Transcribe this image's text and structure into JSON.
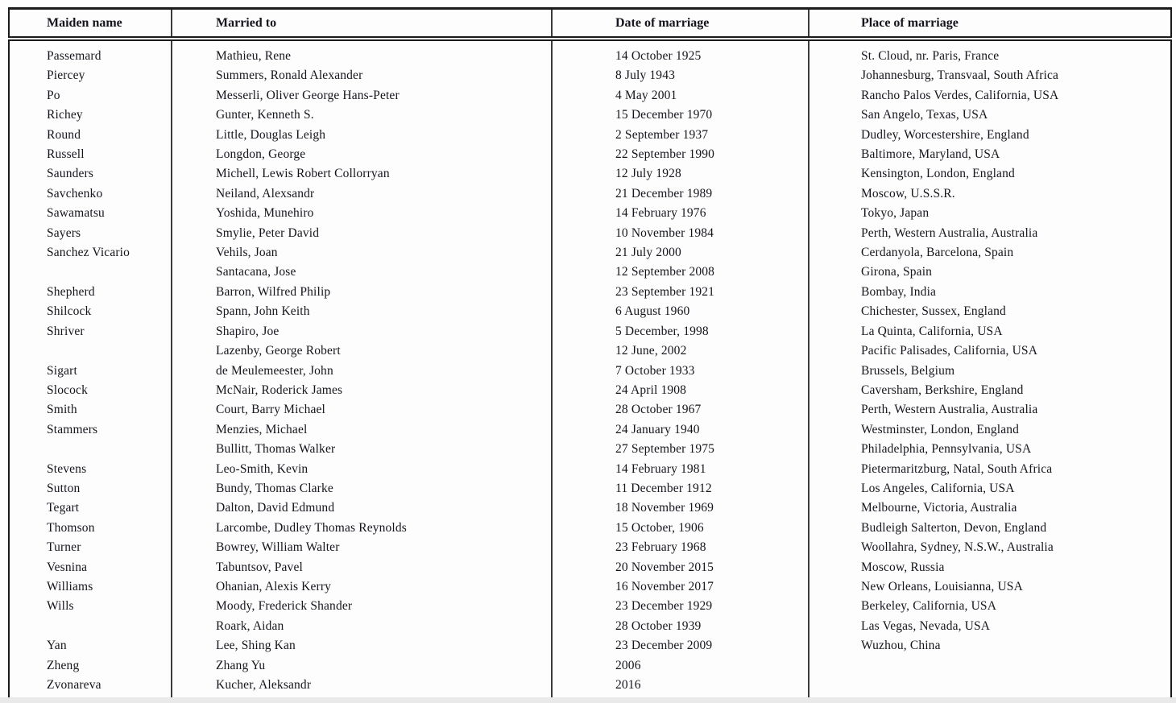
{
  "colors": {
    "text": "#15151d",
    "border": "#1b1b1b",
    "background": "#fdfdfd"
  },
  "table": {
    "columns": [
      "Maiden name",
      "Married to",
      "Date of marriage",
      "Place of marriage"
    ],
    "column_keys": [
      "maiden-name",
      "married-to",
      "date-of-marriage",
      "place-of-marriage"
    ],
    "rows": [
      [
        "Passemard",
        "Mathieu, Rene",
        "14 October 1925",
        "St. Cloud, nr. Paris, France"
      ],
      [
        "Piercey",
        "Summers, Ronald Alexander",
        "8 July 1943",
        "Johannesburg, Transvaal, South Africa"
      ],
      [
        "Po",
        "Messerli, Oliver George Hans-Peter",
        "4 May 2001",
        "Rancho Palos Verdes, California, USA"
      ],
      [
        "Richey",
        "Gunter, Kenneth S.",
        "15 December 1970",
        "San Angelo, Texas, USA"
      ],
      [
        "Round",
        "Little, Douglas Leigh",
        "2 September 1937",
        "Dudley, Worcestershire, England"
      ],
      [
        "Russell",
        "Longdon, George",
        "22 September 1990",
        "Baltimore, Maryland, USA"
      ],
      [
        "Saunders",
        "Michell, Lewis Robert Collorryan",
        "12 July 1928",
        "Kensington, London, England"
      ],
      [
        "Savchenko",
        "Neiland, Alexsandr",
        "21 December 1989",
        "Moscow, U.S.S.R."
      ],
      [
        "Sawamatsu",
        "Yoshida, Munehiro",
        "14 February 1976",
        "Tokyo, Japan"
      ],
      [
        "Sayers",
        "Smylie, Peter David",
        "10 November 1984",
        "Perth, Western Australia, Australia"
      ],
      [
        "Sanchez Vicario",
        "Vehils, Joan",
        "21 July 2000",
        "Cerdanyola, Barcelona, Spain"
      ],
      [
        "",
        "Santacana, Jose",
        "12 September 2008",
        "Girona, Spain"
      ],
      [
        "Shepherd",
        "Barron, Wilfred Philip",
        "23 September 1921",
        "Bombay, India"
      ],
      [
        "Shilcock",
        "Spann, John Keith",
        "6 August 1960",
        "Chichester, Sussex, England"
      ],
      [
        "Shriver",
        "Shapiro, Joe",
        "5 December, 1998",
        "La Quinta, California, USA"
      ],
      [
        "",
        "Lazenby, George Robert",
        "12 June, 2002",
        "Pacific Palisades, California, USA"
      ],
      [
        "Sigart",
        "de Meulemeester, John",
        "7 October 1933",
        "Brussels, Belgium"
      ],
      [
        "Slocock",
        "McNair, Roderick James",
        "24 April 1908",
        "Caversham, Berkshire, England"
      ],
      [
        "Smith",
        "Court, Barry Michael",
        "28 October 1967",
        "Perth, Western Australia, Australia"
      ],
      [
        "Stammers",
        "Menzies, Michael",
        "24 January 1940",
        "Westminster, London, England"
      ],
      [
        "",
        "Bullitt, Thomas Walker",
        "27 September 1975",
        "Philadelphia, Pennsylvania, USA"
      ],
      [
        "Stevens",
        "Leo-Smith, Kevin",
        "14 February 1981",
        "Pietermaritzburg, Natal, South Africa"
      ],
      [
        "Sutton",
        "Bundy, Thomas Clarke",
        "11 December 1912",
        "Los Angeles, California, USA"
      ],
      [
        "Tegart",
        "Dalton, David Edmund",
        "18 November 1969",
        "Melbourne, Victoria, Australia"
      ],
      [
        "Thomson",
        "Larcombe, Dudley Thomas Reynolds",
        "15 October, 1906",
        "Budleigh Salterton, Devon, England"
      ],
      [
        "Turner",
        "Bowrey, William Walter",
        "23 February 1968",
        "Woollahra, Sydney, N.S.W., Australia"
      ],
      [
        "Vesnina",
        "Tabuntsov, Pavel",
        "20 November 2015",
        "Moscow, Russia"
      ],
      [
        "Williams",
        "Ohanian, Alexis Kerry",
        "16 November 2017",
        "New Orleans, Louisianna, USA"
      ],
      [
        "Wills",
        "Moody, Frederick Shander",
        "23 December 1929",
        "Berkeley, California, USA"
      ],
      [
        "",
        "Roark, Aidan",
        "28 October 1939",
        "Las Vegas, Nevada, USA"
      ],
      [
        "Yan",
        "Lee, Shing Kan",
        "23 December 2009",
        "Wuzhou, China"
      ],
      [
        "Zheng",
        "Zhang Yu",
        "2006",
        ""
      ],
      [
        "Zvonareva",
        "Kucher, Aleksandr",
        "2016",
        ""
      ]
    ]
  }
}
